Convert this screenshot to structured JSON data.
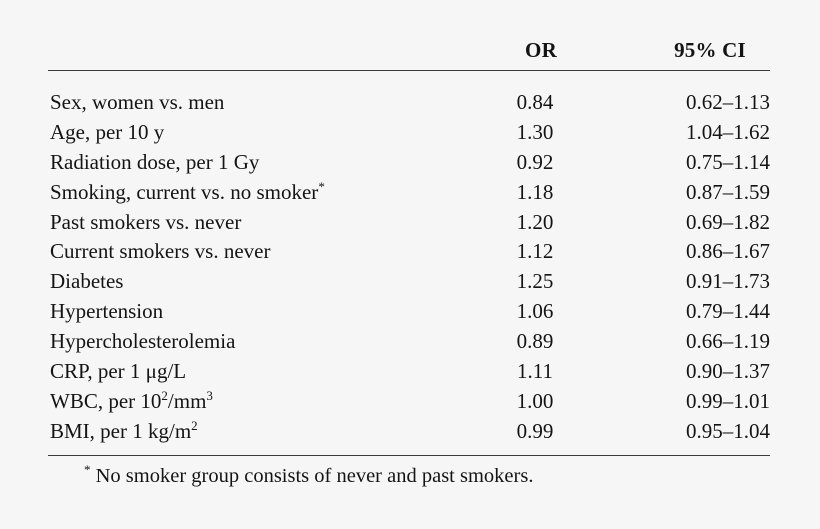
{
  "table": {
    "columns": {
      "or": "OR",
      "ci": "95% CI"
    },
    "rows": [
      {
        "label": "Sex, women vs. men",
        "or": "0.84",
        "ci": "0.62–1.13"
      },
      {
        "label": "Age, per 10 y",
        "or": "1.30",
        "ci": "1.04–1.62"
      },
      {
        "label": "Radiation dose, per 1 Gy",
        "or": "0.92",
        "ci": "0.75–1.14"
      },
      {
        "label": "Smoking, current vs. no smoker",
        "label_sup": "*",
        "or": "1.18",
        "ci": "0.87–1.59"
      },
      {
        "label": "Past smokers vs. never",
        "or": "1.20",
        "ci": "0.69–1.82"
      },
      {
        "label": "Current smokers vs. never",
        "or": "1.12",
        "ci": "0.86–1.67"
      },
      {
        "label": "Diabetes",
        "or": "1.25",
        "ci": "0.91–1.73"
      },
      {
        "label": "Hypertension",
        "or": "1.06",
        "ci": "0.79–1.44"
      },
      {
        "label": "Hypercholesterolemia",
        "or": "0.89",
        "ci": "0.66–1.19"
      },
      {
        "label": "CRP, per 1 μg/L",
        "or": "1.11",
        "ci": "0.90–1.37"
      },
      {
        "label_pre": "WBC, per 10",
        "label_sup1": "2",
        "label_mid": "/mm",
        "label_sup2": "3",
        "or": "1.00",
        "ci": "0.99–1.01"
      },
      {
        "label_pre": "BMI, per 1 kg/m",
        "label_sup1": "2",
        "or": "0.99",
        "ci": "0.95–1.04"
      }
    ]
  },
  "footnote": {
    "marker": "*",
    "text": " No smoker group consists of never and past smokers."
  }
}
